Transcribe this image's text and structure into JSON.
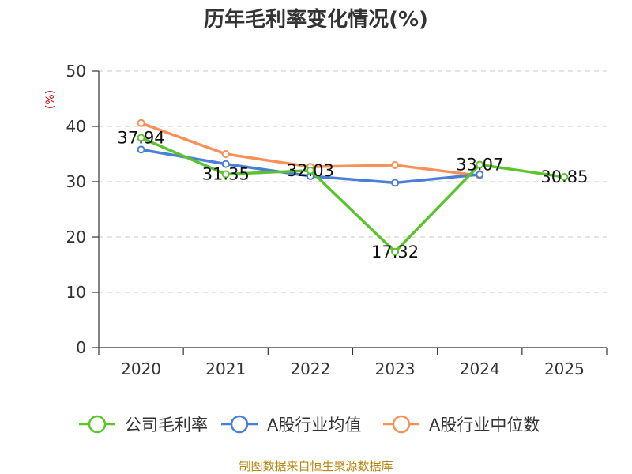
{
  "chart_data": {
    "type": "line",
    "title": "历年毛利率变化情况(%)",
    "unit_label": "(%)",
    "categories": [
      "2020",
      "2021",
      "2022",
      "2023",
      "2024",
      "2025"
    ],
    "ylim": [
      0,
      50
    ],
    "yticks": [
      "0",
      "10",
      "20",
      "30",
      "40",
      "50"
    ],
    "grid": true,
    "legend_position": "bottom",
    "series": [
      {
        "name": "公司毛利率",
        "color": "#5bc42c",
        "values": [
          37.94,
          31.35,
          32.03,
          17.32,
          33.07,
          30.85
        ],
        "labels": [
          "37.94",
          "31.35",
          "32.03",
          "17.32",
          "33.07",
          "30.85"
        ]
      },
      {
        "name": "A股行业均值",
        "color": "#4a7fd6",
        "values": [
          35.8,
          33.2,
          31.0,
          29.8,
          31.3,
          null
        ]
      },
      {
        "name": "A股行业中位数",
        "color": "#f7915a",
        "values": [
          40.6,
          35.0,
          32.7,
          33.0,
          31.1,
          null
        ]
      }
    ],
    "source": "制图数据来自恒生聚源数据库"
  }
}
